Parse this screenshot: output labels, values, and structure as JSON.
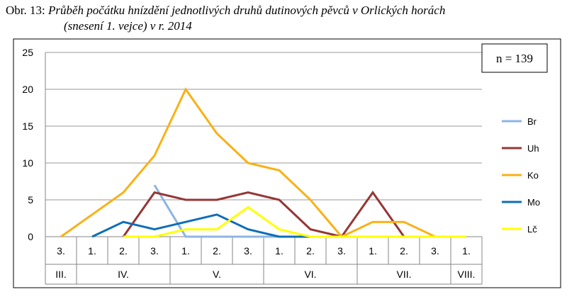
{
  "caption": {
    "prefix": "Obr. 13:",
    "title": "Průběh počátku hnízdění jednotlivých druhů dutinových pěvců v Orlických horách",
    "subtitle": "(snesení 1. vejce) v r. 2014"
  },
  "chart_data": {
    "type": "line",
    "title": "Průběh počátku hnízdění jednotlivých druhů dutinových pěvců v Orlických horách (snesení 1. vejce) v r. 2014",
    "annotation": "n = 139",
    "ylim": [
      0,
      25
    ],
    "yticks": [
      0,
      5,
      10,
      15,
      20,
      25
    ],
    "grid": "horizontal",
    "legend_position": "right",
    "categories": [
      "3.",
      "1.",
      "2.",
      "3.",
      "1.",
      "2.",
      "3.",
      "1.",
      "2.",
      "3.",
      "1.",
      "2.",
      "3.",
      "1."
    ],
    "month_groups": [
      {
        "label": "III.",
        "count": 1
      },
      {
        "label": "IV.",
        "count": 3
      },
      {
        "label": "V.",
        "count": 3
      },
      {
        "label": "VI.",
        "count": 3
      },
      {
        "label": "VII.",
        "count": 3
      },
      {
        "label": "VIII.",
        "count": 1
      }
    ],
    "series": [
      {
        "name": "Br",
        "color": "#8EB4E3",
        "values": [
          null,
          null,
          null,
          7,
          0,
          0,
          0,
          0,
          0,
          0,
          null,
          null,
          null,
          null
        ]
      },
      {
        "name": "Uh",
        "color": "#953735",
        "values": [
          null,
          null,
          0,
          6,
          5,
          5,
          6,
          5,
          1,
          0,
          6,
          0,
          null,
          null
        ]
      },
      {
        "name": "Ko",
        "color": "#F9B115",
        "values": [
          0,
          3,
          6,
          11,
          20,
          14,
          10,
          9,
          5,
          0,
          2,
          2,
          0,
          0
        ]
      },
      {
        "name": "Mo",
        "color": "#0E6EB8",
        "values": [
          null,
          0,
          2,
          1,
          2,
          3,
          1,
          0,
          0,
          null,
          null,
          null,
          null,
          null
        ]
      },
      {
        "name": "Lč",
        "color": "#FFFF00",
        "values": [
          null,
          null,
          0,
          0,
          1,
          1,
          4,
          1,
          0,
          0,
          0,
          0,
          0,
          0
        ]
      }
    ]
  }
}
